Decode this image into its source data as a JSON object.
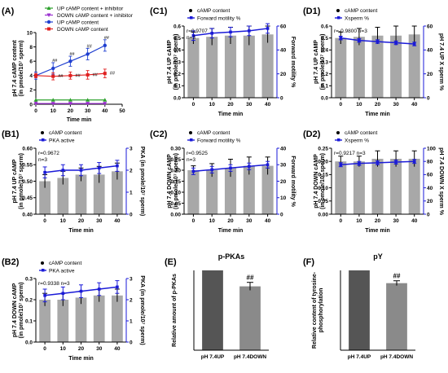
{
  "chart_data": [
    {
      "id": "A",
      "type": "line",
      "panel_label": "(A)",
      "x": [
        0,
        10,
        20,
        30,
        40
      ],
      "xlabel": "Time  min",
      "ylabel": "pH 7.4 cAMP content",
      "ylabel2": "(in pmole/10⁷ sperm)",
      "xlim": [
        0,
        50
      ],
      "ylim": [
        0,
        10
      ],
      "xticks": [
        0,
        10,
        20,
        30,
        40,
        50
      ],
      "yticks": [
        0,
        2,
        4,
        6,
        8,
        10
      ],
      "series": [
        {
          "name": "UP cAMP content + inhibitor",
          "color": "#2ca02c",
          "marker": "triangle",
          "values": [
            0.6,
            0.6,
            0.6,
            0.6,
            0.6
          ],
          "err": [
            0,
            0,
            0,
            0,
            0
          ]
        },
        {
          "name": "DOWN cAMP content + inhibitor",
          "color": "#9b30d0",
          "marker": "triangle-down",
          "values": [
            0.1,
            0.1,
            0.1,
            0.1,
            0.1
          ],
          "err": [
            0,
            0,
            0,
            0,
            0
          ]
        },
        {
          "name": "UP cAMP content",
          "color": "#1f3fd0",
          "marker": "circle",
          "values": [
            4.0,
            5.0,
            6.0,
            7.0,
            8.2
          ],
          "err": [
            0.5,
            0.8,
            0.7,
            0.8,
            0.8
          ]
        },
        {
          "name": "DOWN cAMP content",
          "color": "#e02020",
          "marker": "square",
          "values": [
            4.0,
            3.9,
            4.0,
            4.1,
            4.3
          ],
          "err": [
            0.3,
            0.5,
            0.5,
            0.6,
            0.6
          ]
        }
      ],
      "sig_up": [
        "##",
        "##",
        "##",
        "##"
      ],
      "sig_down": [
        "##",
        "##",
        "##",
        "##"
      ]
    },
    {
      "id": "C1",
      "type": "bar",
      "panel_label": "(C1)",
      "categories": [
        "0",
        "10",
        "20",
        "30",
        "40"
      ],
      "xlabel": "Time  min",
      "ylabel": "pH 7.4 UP cAMP",
      "ylabel2": "(in pmole/10⁷ sperm)",
      "y2label": "Forward motility %",
      "ylim": [
        0,
        0.6
      ],
      "yticks": [
        0.0,
        0.1,
        0.2,
        0.3,
        0.4,
        0.5,
        0.6
      ],
      "y2lim": [
        0,
        60
      ],
      "y2ticks": [
        0,
        20,
        40,
        60
      ],
      "bar_name": "cAMP content",
      "line_name": "Forward motility %",
      "bars": [
        0.5,
        0.51,
        0.52,
        0.52,
        0.53
      ],
      "bar_err": [
        0.05,
        0.07,
        0.07,
        0.08,
        0.07
      ],
      "line": [
        52,
        54,
        55,
        56,
        58
      ],
      "line_err": [
        4,
        4,
        4,
        4,
        4
      ],
      "stats": [
        "r=0.9707",
        "n=3"
      ]
    },
    {
      "id": "D1",
      "type": "bar",
      "panel_label": "(D1)",
      "categories": [
        "0",
        "10",
        "20",
        "30",
        "40"
      ],
      "xlabel": "Time  min",
      "ylabel": "pH 7.4 UP cAMP",
      "ylabel2": "(in pmole/10⁷ sperm)",
      "y2label": "pH 7.4 UP X sperm %",
      "ylim": [
        0,
        0.6
      ],
      "yticks": [
        0.0,
        0.1,
        0.2,
        0.3,
        0.4,
        0.5,
        0.6
      ],
      "y2lim": [
        0,
        60
      ],
      "y2ticks": [
        0,
        20,
        40,
        60
      ],
      "bar_name": "cAMP content",
      "line_name": "Xsperm %",
      "bars": [
        0.5,
        0.51,
        0.52,
        0.52,
        0.53
      ],
      "bar_err": [
        0.05,
        0.07,
        0.07,
        0.08,
        0.07
      ],
      "line": [
        50,
        48,
        47,
        46,
        45
      ],
      "line_err": [
        1.5,
        1.5,
        1.5,
        1.5,
        1.5
      ],
      "stats": [
        "r=-0.9800  n=3"
      ]
    },
    {
      "id": "B1",
      "type": "bar",
      "panel_label": "(B1)",
      "categories": [
        "0",
        "10",
        "20",
        "30",
        "40"
      ],
      "xlabel": "Time min",
      "ylabel": "pH 7.4 UP cAMP",
      "ylabel2": "(in pmole/10⁷ sperm)",
      "y2label": "PKA (in pmole/10⁷ sperm)",
      "ylim": [
        0.4,
        0.6
      ],
      "yticks": [
        0.4,
        0.45,
        0.5,
        0.55,
        0.6
      ],
      "y2lim": [
        0,
        3
      ],
      "y2ticks": [
        0,
        1,
        2,
        3
      ],
      "bar_name": "cAMP content",
      "line_name": "PKA active",
      "bars": [
        0.5,
        0.51,
        0.52,
        0.52,
        0.53
      ],
      "bar_err": [
        0.02,
        0.02,
        0.02,
        0.025,
        0.025
      ],
      "line": [
        1.9,
        2.0,
        2.0,
        2.1,
        2.2
      ],
      "line_err": [
        0.25,
        0.25,
        0.25,
        0.25,
        0.25
      ],
      "stats": [
        "r=0.9672",
        "n=3"
      ]
    },
    {
      "id": "C2",
      "type": "bar",
      "panel_label": "(C2)",
      "categories": [
        "0",
        "10",
        "20",
        "30",
        "40"
      ],
      "xlabel": "Time  min",
      "ylabel": "pH 7.4 DOWN cAMP",
      "ylabel2": "(in pmole/10⁷ sperm)",
      "y2label": "Forward motility %",
      "ylim": [
        0,
        0.3
      ],
      "yticks": [
        0.0,
        0.05,
        0.1,
        0.15,
        0.2,
        0.25,
        0.3
      ],
      "y2lim": [
        0,
        40
      ],
      "y2ticks": [
        0,
        10,
        20,
        30,
        40
      ],
      "bar_name": "cAMP content",
      "line_name": "Forward motility %",
      "bars": [
        0.2,
        0.2,
        0.21,
        0.22,
        0.22
      ],
      "bar_err": [
        0.02,
        0.03,
        0.04,
        0.04,
        0.04
      ],
      "line": [
        26,
        27,
        28,
        29,
        30
      ],
      "line_err": [
        2,
        2,
        2,
        2,
        2
      ],
      "stats": [
        "r=0.9525",
        "n=3"
      ]
    },
    {
      "id": "D2",
      "type": "bar",
      "panel_label": "(D2)",
      "categories": [
        "0",
        "10",
        "20",
        "30",
        "40"
      ],
      "xlabel": "Time  min",
      "ylabel": "pH 7.4 DOWN cAMP",
      "ylabel2": "(in pmole/10⁷ sperm)",
      "y2label": "pH 7.4 DOWN X sperm %",
      "ylim": [
        0,
        0.25
      ],
      "yticks": [
        0.0,
        0.05,
        0.1,
        0.15,
        0.2,
        0.25
      ],
      "y2lim": [
        0,
        100
      ],
      "y2ticks": [
        0,
        20,
        40,
        60,
        80,
        100
      ],
      "bar_name": "cAMP content",
      "line_name": "Xsperm %",
      "bars": [
        0.2,
        0.2,
        0.21,
        0.21,
        0.21
      ],
      "bar_err": [
        0.02,
        0.02,
        0.03,
        0.03,
        0.03
      ],
      "line": [
        75,
        77,
        78,
        79,
        80
      ],
      "line_err": [
        3,
        3,
        3,
        3,
        3
      ],
      "stats": [
        "r=0.9217  n=3"
      ]
    },
    {
      "id": "B2",
      "type": "bar",
      "panel_label": "(B2)",
      "categories": [
        "0",
        "10",
        "20",
        "30",
        "40"
      ],
      "xlabel": "Time min",
      "ylabel": "pH 7.4 DOWN cAMP",
      "ylabel2": "(in pmole/10⁷ sperm)",
      "y2label": "PKA (in pmole/10⁷ sperm)",
      "ylim": [
        0,
        0.3
      ],
      "yticks": [
        0.0,
        0.1,
        0.2,
        0.3
      ],
      "y2lim": [
        0,
        3
      ],
      "y2ticks": [
        0,
        1,
        2,
        3
      ],
      "bar_name": "cAMP content",
      "line_name": "PKA active",
      "bars": [
        0.2,
        0.2,
        0.21,
        0.22,
        0.22
      ],
      "bar_err": [
        0.03,
        0.03,
        0.03,
        0.03,
        0.03
      ],
      "line": [
        2.2,
        2.3,
        2.4,
        2.5,
        2.6
      ],
      "line_err": [
        0.3,
        0.3,
        0.3,
        0.3,
        0.3
      ],
      "stats": [
        "r=0.9338  n=3"
      ]
    },
    {
      "id": "E",
      "type": "bar",
      "panel_label": "(E)",
      "title": "p-PKAs",
      "categories": [
        "pH 7.4UP",
        "pH 7.4DOWN"
      ],
      "values": [
        1.0,
        0.8
      ],
      "err": [
        0,
        0.05
      ],
      "ylabel": "Relative amount of p-PKAs",
      "ylim": [
        0,
        1.0
      ],
      "sig": [
        "",
        "##"
      ]
    },
    {
      "id": "F",
      "type": "bar",
      "panel_label": "(F)",
      "title": "pY",
      "categories": [
        "pH 7.4UP",
        "pH 7.4DOWN"
      ],
      "values": [
        1.0,
        0.84
      ],
      "err": [
        0,
        0.03
      ],
      "ylabel": "Relative content of tyrosine-",
      "ylabel2": "phosphorylation",
      "ylim": [
        0,
        1.0
      ],
      "sig": [
        "",
        "##"
      ]
    }
  ]
}
